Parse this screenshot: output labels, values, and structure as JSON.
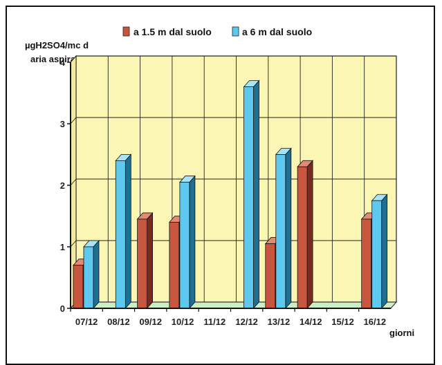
{
  "chart_data": {
    "type": "bar",
    "ylabel_lines": [
      "µgH2SO4/mc d",
      "aria aspirata"
    ],
    "xlabel": "giorni",
    "categories": [
      "07/12",
      "08/12",
      "09/12",
      "10/12",
      "11/12",
      "12/12",
      "13/12",
      "14/12",
      "15/12",
      "16/12"
    ],
    "series": [
      {
        "name": "a 1.5 m dal suolo",
        "values": [
          0.7,
          0,
          1.45,
          1.4,
          0,
          0,
          1.05,
          2.3,
          0,
          1.45
        ]
      },
      {
        "name": "a 6 m dal suolo",
        "values": [
          1.0,
          2.4,
          0,
          2.05,
          0,
          3.6,
          2.5,
          0,
          0,
          1.75
        ]
      }
    ],
    "ylim": [
      0,
      4
    ],
    "yticks": [
      0,
      1,
      2,
      3,
      4
    ],
    "grid": true,
    "legend_position": "top",
    "colors": {
      "series1": "#c8553d",
      "series1_side": "#7a2a1c",
      "series2": "#5ec8ee",
      "series2_side": "#1e6f92",
      "plot_bg": "#fbf6b4",
      "floor": "#cdeec4",
      "grid": "#222222"
    }
  }
}
